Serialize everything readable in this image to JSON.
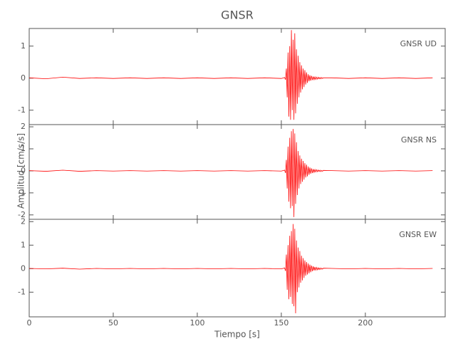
{
  "chart_data": [
    {
      "type": "line",
      "title": "GNSR",
      "annotation": "GNSR UD",
      "xlim": [
        0,
        247.5
      ],
      "xticks": [
        0,
        50,
        100,
        150,
        200
      ],
      "ylim": [
        -1.45,
        1.55
      ],
      "yticks": [
        -1,
        0,
        1
      ],
      "series": [
        {
          "color": "#ff0000",
          "x": [
            0,
            10,
            20,
            30,
            40,
            50,
            60,
            70,
            80,
            90,
            100,
            110,
            120,
            130,
            140,
            150,
            152,
            152.5,
            153,
            153.5,
            154,
            154.5,
            155,
            155.5,
            156,
            156.5,
            157,
            157.5,
            158,
            158.5,
            159,
            159.5,
            160,
            160.5,
            161,
            161.5,
            162,
            162.5,
            163,
            163.5,
            164,
            164.5,
            165,
            165.5,
            166,
            166.5,
            167,
            167.5,
            168,
            168.5,
            169,
            169.5,
            170,
            170.5,
            171,
            171.5,
            172,
            172.5,
            173,
            173.5,
            174,
            174.5,
            175,
            180,
            190,
            200,
            210,
            220,
            230,
            240
          ],
          "values": [
            0.01,
            -0.02,
            0.03,
            -0.01,
            0.01,
            -0.01,
            0.01,
            -0.01,
            0.01,
            -0.01,
            0.01,
            -0.01,
            0.01,
            -0.01,
            0.01,
            -0.01,
            0.02,
            -0.05,
            0.3,
            -0.6,
            0.8,
            -1.2,
            1.0,
            -1.3,
            1.5,
            -1.0,
            1.2,
            -1.3,
            1.4,
            -1.1,
            0.9,
            -0.8,
            0.7,
            -0.6,
            0.5,
            -0.45,
            0.4,
            -0.35,
            0.3,
            -0.28,
            0.25,
            -0.2,
            0.18,
            -0.15,
            0.12,
            -0.1,
            0.09,
            -0.08,
            0.07,
            -0.06,
            0.05,
            -0.05,
            0.04,
            -0.04,
            0.03,
            -0.03,
            0.03,
            -0.02,
            0.02,
            -0.02,
            0.02,
            -0.01,
            0.01,
            0.01,
            -0.01,
            0.01,
            -0.01,
            0.01,
            -0.01,
            0.01
          ]
        }
      ]
    },
    {
      "type": "line",
      "y_label": "Amplitud [cm/s/s]",
      "annotation": "GNSR NS",
      "xlim": [
        0,
        247.5
      ],
      "xticks": [
        0,
        50,
        100,
        150,
        200
      ],
      "ylim": [
        -2.2,
        2.1
      ],
      "yticks": [
        -2,
        -1,
        0,
        1,
        2
      ],
      "series": [
        {
          "color": "#ff0000",
          "x": [
            0,
            10,
            20,
            30,
            40,
            50,
            60,
            70,
            80,
            90,
            100,
            110,
            120,
            130,
            140,
            150,
            152,
            152.5,
            153,
            153.5,
            154,
            154.5,
            155,
            155.5,
            156,
            156.5,
            157,
            157.5,
            158,
            158.5,
            159,
            159.5,
            160,
            160.5,
            161,
            161.5,
            162,
            162.5,
            163,
            163.5,
            164,
            164.5,
            165,
            165.5,
            166,
            166.5,
            167,
            167.5,
            168,
            168.5,
            169,
            169.5,
            170,
            170.5,
            171,
            171.5,
            172,
            172.5,
            173,
            173.5,
            174,
            174.5,
            175,
            180,
            190,
            200,
            210,
            220,
            230,
            240
          ],
          "values": [
            0.01,
            -0.02,
            0.03,
            -0.02,
            0.01,
            -0.01,
            0.01,
            -0.01,
            0.01,
            -0.01,
            0.01,
            -0.01,
            0.01,
            -0.01,
            0.01,
            -0.01,
            0.03,
            -0.1,
            0.5,
            -0.8,
            1.1,
            -1.4,
            1.5,
            -1.7,
            1.8,
            -1.6,
            1.9,
            -2.1,
            1.7,
            -1.5,
            1.3,
            -1.1,
            0.9,
            -0.8,
            0.7,
            -0.6,
            0.55,
            -0.5,
            0.45,
            -0.4,
            0.35,
            -0.3,
            0.28,
            -0.25,
            0.2,
            -0.18,
            0.15,
            -0.13,
            0.11,
            -0.1,
            0.08,
            -0.07,
            0.06,
            -0.05,
            0.05,
            -0.04,
            0.04,
            -0.03,
            0.03,
            -0.03,
            0.02,
            -0.02,
            0.02,
            0.01,
            -0.01,
            0.01,
            -0.01,
            0.01,
            -0.01,
            0.01
          ]
        }
      ]
    },
    {
      "type": "line",
      "x_label": "Tiempo [s]",
      "annotation": "GNSR EW",
      "xlim": [
        0,
        247.5
      ],
      "xticks": [
        0,
        50,
        100,
        150,
        200
      ],
      "ylim": [
        -2.05,
        2.1
      ],
      "yticks": [
        -1,
        0,
        1,
        2
      ],
      "series": [
        {
          "color": "#ff0000",
          "x": [
            0,
            10,
            20,
            30,
            40,
            50,
            60,
            70,
            80,
            90,
            100,
            110,
            120,
            130,
            140,
            150,
            152,
            152.5,
            153,
            153.5,
            154,
            154.5,
            155,
            155.5,
            156,
            156.5,
            157,
            157.5,
            158,
            158.5,
            159,
            159.5,
            160,
            160.5,
            161,
            161.5,
            162,
            162.5,
            163,
            163.5,
            164,
            164.5,
            165,
            165.5,
            166,
            166.5,
            167,
            167.5,
            168,
            168.5,
            169,
            169.5,
            170,
            170.5,
            171,
            171.5,
            172,
            172.5,
            173,
            173.5,
            174,
            174.5,
            175,
            180,
            190,
            200,
            210,
            220,
            230,
            240
          ],
          "values": [
            0.01,
            -0.01,
            0.02,
            -0.02,
            0.01,
            -0.01,
            0.01,
            -0.01,
            0.01,
            -0.01,
            0.01,
            -0.01,
            0.01,
            -0.01,
            0.01,
            -0.01,
            0.03,
            -0.1,
            0.6,
            -0.9,
            1.0,
            -1.3,
            1.4,
            -1.2,
            1.6,
            -1.5,
            1.9,
            -1.6,
            1.7,
            -1.9,
            1.2,
            -1.0,
            0.9,
            -0.8,
            0.75,
            -0.6,
            0.55,
            -0.5,
            0.45,
            -0.4,
            0.35,
            -0.3,
            0.28,
            -0.25,
            0.22,
            -0.2,
            0.17,
            -0.15,
            0.13,
            -0.11,
            0.1,
            -0.08,
            0.07,
            -0.06,
            0.05,
            -0.05,
            0.04,
            -0.04,
            0.03,
            -0.03,
            0.02,
            -0.02,
            0.02,
            0.01,
            -0.01,
            0.01,
            -0.01,
            0.01,
            -0.01,
            0.01
          ]
        }
      ]
    }
  ]
}
